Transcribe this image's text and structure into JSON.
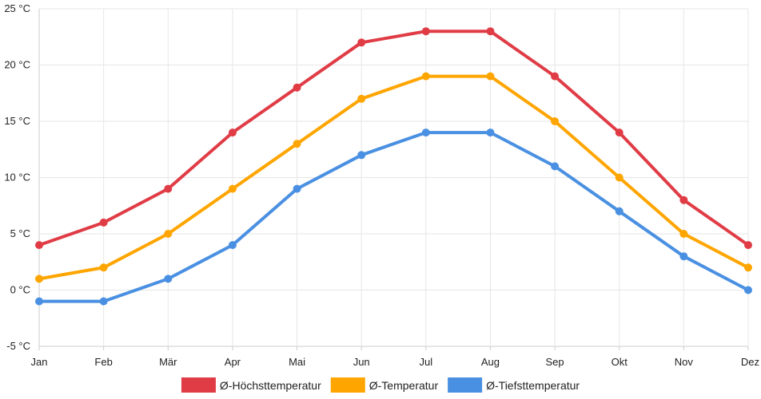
{
  "chart_data": {
    "type": "line",
    "title": "",
    "xlabel": "",
    "ylabel": "",
    "categories": [
      "Jan",
      "Feb",
      "Mär",
      "Apr",
      "Mai",
      "Jun",
      "Jul",
      "Aug",
      "Sep",
      "Okt",
      "Nov",
      "Dez"
    ],
    "ylim": [
      -5,
      25
    ],
    "yticks": [
      -5,
      0,
      5,
      10,
      15,
      20,
      25
    ],
    "ytick_labels": [
      "-5 °C",
      "0 °C",
      "5 °C",
      "10 °C",
      "15 °C",
      "20 °C",
      "25 °C"
    ],
    "grid": true,
    "legend_position": "bottom",
    "series": [
      {
        "name": "Ø-Höchsttemperatur",
        "color": "#e03c46",
        "values": [
          4,
          6,
          9,
          14,
          18,
          22,
          23,
          23,
          19,
          14,
          8,
          4
        ]
      },
      {
        "name": "Ø-Temperatur",
        "color": "#ffa500",
        "values": [
          1,
          2,
          5,
          9,
          13,
          17,
          19,
          19,
          15,
          10,
          5,
          2
        ]
      },
      {
        "name": "Ø-Tiefsttemperatur",
        "color": "#4a90e2",
        "values": [
          -1,
          -1,
          1,
          4,
          9,
          12,
          14,
          14,
          11,
          7,
          3,
          0
        ]
      }
    ]
  }
}
